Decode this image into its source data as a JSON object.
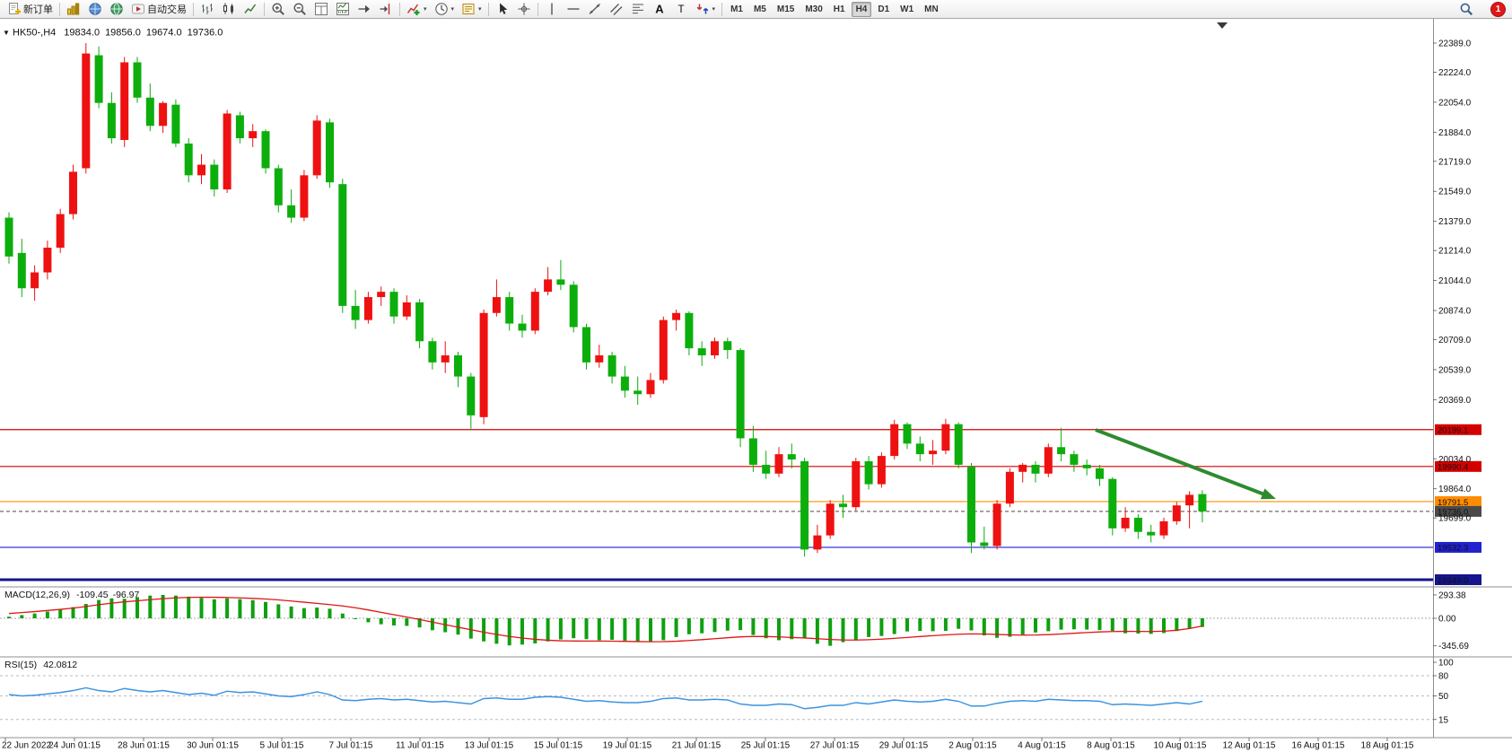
{
  "window": {
    "badge_count": "1"
  },
  "toolbar": {
    "groups": [
      {
        "items": [
          {
            "name": "new-order",
            "icon": "page-plus",
            "label": "新订单"
          }
        ]
      },
      {
        "items": [
          {
            "name": "market-watch",
            "icon": "market-watch"
          },
          {
            "name": "navigator",
            "icon": "navigator"
          },
          {
            "name": "terminal",
            "icon": "terminal"
          },
          {
            "name": "autotrading",
            "icon": "autotrading-play",
            "label": "自动交易"
          }
        ]
      },
      {
        "items": [
          {
            "name": "chart-bars",
            "icon": "chart-bars"
          },
          {
            "name": "chart-candles",
            "icon": "chart-candles"
          },
          {
            "name": "chart-line",
            "icon": "chart-line"
          }
        ]
      },
      {
        "items": [
          {
            "name": "zoom-in",
            "icon": "zoom-in"
          },
          {
            "name": "zoom-out",
            "icon": "zoom-out"
          },
          {
            "name": "tile-windows",
            "icon": "tile-windows"
          },
          {
            "name": "indicator-window",
            "icon": "indicator-window"
          },
          {
            "name": "auto-scroll",
            "icon": "auto-scroll"
          },
          {
            "name": "chart-shift",
            "icon": "chart-shift"
          }
        ]
      },
      {
        "items": [
          {
            "name": "insert-indicator",
            "icon": "add-indicator",
            "caret": true
          },
          {
            "name": "periods",
            "icon": "periods-clock",
            "caret": true
          },
          {
            "name": "templates",
            "icon": "templates",
            "caret": true
          }
        ]
      },
      {
        "items": [
          {
            "name": "cursor",
            "icon": "cursor-arrow"
          },
          {
            "name": "crosshair",
            "icon": "crosshair"
          }
        ]
      },
      {
        "items": [
          {
            "name": "vertical-line-tool",
            "icon": "vline"
          },
          {
            "name": "horizontal-line-tool",
            "icon": "hline"
          },
          {
            "name": "trendline-tool",
            "icon": "trendline"
          },
          {
            "name": "channel-tool",
            "icon": "channel"
          },
          {
            "name": "fibonacci-tool",
            "icon": "fibonacci"
          },
          {
            "name": "text-tool",
            "icon": "text-a"
          },
          {
            "name": "label-tool",
            "icon": "label-t"
          },
          {
            "name": "arrows-tool",
            "icon": "arrows-shapes",
            "caret": true
          }
        ]
      }
    ],
    "timeframes": [
      "M1",
      "M5",
      "M15",
      "M30",
      "H1",
      "H4",
      "D1",
      "W1",
      "MN"
    ],
    "active_timeframe": "H4"
  },
  "chart_data": {
    "type": "candlestick",
    "symbol": "HK50-",
    "timeframe": "H4",
    "header": {
      "symbol_tf": "HK50-,H4",
      "open": "19834.0",
      "high": "19856.0",
      "low": "19674.0",
      "close": "19736.0"
    },
    "price_gridlines": [
      "22389.0",
      "22224.0",
      "22054.0",
      "21884.0",
      "21719.0",
      "21549.0",
      "21379.0",
      "21214.0",
      "21044.0",
      "20874.0",
      "20709.0",
      "20539.0",
      "20369.0",
      "20034.0",
      "19864.0",
      "19699.0"
    ],
    "levels": [
      {
        "label": "20199.1",
        "value": 20199.1,
        "color": "#d40000",
        "kind": "resistance"
      },
      {
        "label": "19990.4",
        "value": 19990.4,
        "color": "#d40000",
        "kind": "resistance"
      },
      {
        "label": "19791.5",
        "value": 19791.5,
        "color": "#ff8c00",
        "kind": "support"
      },
      {
        "label": "19736.0",
        "value": 19736.0,
        "color": "#4a4a4a",
        "kind": "current-price"
      },
      {
        "label": "19532.3",
        "value": 19532.3,
        "color": "#2121cf",
        "kind": "support"
      },
      {
        "label": "19349.0",
        "value": 19349.0,
        "color": "#15158d",
        "kind": "support",
        "thick": true
      }
    ],
    "colors": {
      "bull": "#ee1111",
      "bear": "#0cae0c",
      "macd_histogram": "#0fa00f",
      "macd_signal": "#e01515",
      "rsi_line": "#3b93e0",
      "arrow": "#2e8b2e"
    },
    "candles": [
      [
        21400,
        21430,
        21140,
        21180
      ],
      [
        21200,
        21280,
        20950,
        21000
      ],
      [
        21000,
        21130,
        20930,
        21090
      ],
      [
        21090,
        21270,
        21050,
        21230
      ],
      [
        21230,
        21450,
        21200,
        21420
      ],
      [
        21420,
        21700,
        21390,
        21660
      ],
      [
        21680,
        22389,
        21650,
        22330
      ],
      [
        22320,
        22370,
        22020,
        22050
      ],
      [
        22050,
        22110,
        21820,
        21850
      ],
      [
        21840,
        22310,
        21800,
        22280
      ],
      [
        22280,
        22310,
        22050,
        22080
      ],
      [
        22080,
        22160,
        21890,
        21920
      ],
      [
        21920,
        22060,
        21880,
        22050
      ],
      [
        22040,
        22070,
        21800,
        21820
      ],
      [
        21820,
        21850,
        21600,
        21640
      ],
      [
        21640,
        21760,
        21590,
        21700
      ],
      [
        21700,
        21730,
        21520,
        21560
      ],
      [
        21560,
        22010,
        21540,
        21990
      ],
      [
        21980,
        22000,
        21820,
        21850
      ],
      [
        21850,
        21930,
        21800,
        21890
      ],
      [
        21890,
        21900,
        21650,
        21680
      ],
      [
        21680,
        21700,
        21430,
        21470
      ],
      [
        21470,
        21560,
        21370,
        21400
      ],
      [
        21400,
        21670,
        21380,
        21640
      ],
      [
        21640,
        21980,
        21620,
        21950
      ],
      [
        21940,
        21960,
        21570,
        21600
      ],
      [
        21590,
        21620,
        20860,
        20900
      ],
      [
        20900,
        20990,
        20770,
        20820
      ],
      [
        20820,
        20980,
        20800,
        20950
      ],
      [
        20950,
        21010,
        20900,
        20980
      ],
      [
        20980,
        21000,
        20800,
        20840
      ],
      [
        20840,
        20960,
        20820,
        20920
      ],
      [
        20920,
        20940,
        20660,
        20700
      ],
      [
        20700,
        20720,
        20540,
        20580
      ],
      [
        20580,
        20700,
        20520,
        20620
      ],
      [
        20620,
        20640,
        20440,
        20500
      ],
      [
        20500,
        20520,
        20199,
        20280
      ],
      [
        20270,
        20880,
        20230,
        20860
      ],
      [
        20860,
        21050,
        20840,
        20950
      ],
      [
        20950,
        20980,
        20760,
        20800
      ],
      [
        20800,
        20850,
        20720,
        20760
      ],
      [
        20760,
        21000,
        20740,
        20980
      ],
      [
        20980,
        21120,
        20960,
        21050
      ],
      [
        21050,
        21160,
        20990,
        21020
      ],
      [
        21020,
        21040,
        20750,
        20780
      ],
      [
        20780,
        20800,
        20540,
        20580
      ],
      [
        20580,
        20680,
        20550,
        20620
      ],
      [
        20620,
        20640,
        20460,
        20500
      ],
      [
        20500,
        20560,
        20380,
        20420
      ],
      [
        20420,
        20500,
        20340,
        20400
      ],
      [
        20400,
        20520,
        20380,
        20480
      ],
      [
        20480,
        20840,
        20460,
        20820
      ],
      [
        20820,
        20880,
        20760,
        20860
      ],
      [
        20860,
        20870,
        20620,
        20660
      ],
      [
        20660,
        20700,
        20560,
        20620
      ],
      [
        20620,
        20720,
        20600,
        20700
      ],
      [
        20700,
        20720,
        20600,
        20650
      ],
      [
        20650,
        20660,
        20100,
        20150
      ],
      [
        20150,
        20220,
        19960,
        20000
      ],
      [
        20000,
        20080,
        19920,
        19950
      ],
      [
        19950,
        20100,
        19930,
        20060
      ],
      [
        20060,
        20120,
        19980,
        20030
      ],
      [
        20020,
        20040,
        19480,
        19520
      ],
      [
        19520,
        19660,
        19500,
        19600
      ],
      [
        19600,
        19800,
        19580,
        19780
      ],
      [
        19780,
        19830,
        19700,
        19760
      ],
      [
        19760,
        20040,
        19740,
        20020
      ],
      [
        20020,
        20050,
        19860,
        19890
      ],
      [
        19890,
        20070,
        19870,
        20050
      ],
      [
        20050,
        20255,
        20030,
        20230
      ],
      [
        20230,
        20240,
        20090,
        20120
      ],
      [
        20120,
        20160,
        20020,
        20060
      ],
      [
        20060,
        20140,
        20000,
        20080
      ],
      [
        20080,
        20260,
        20060,
        20230
      ],
      [
        20230,
        20240,
        19980,
        20000
      ],
      [
        19990,
        20010,
        19500,
        19560
      ],
      [
        19560,
        19650,
        19520,
        19540
      ],
      [
        19540,
        19800,
        19520,
        19780
      ],
      [
        19780,
        19980,
        19760,
        19960
      ],
      [
        19960,
        20010,
        19900,
        20000
      ],
      [
        20000,
        20020,
        19900,
        19950
      ],
      [
        19950,
        20120,
        19930,
        20100
      ],
      [
        20100,
        20210,
        20020,
        20060
      ],
      [
        20060,
        20080,
        19960,
        20000
      ],
      [
        20000,
        20030,
        19940,
        19980
      ],
      [
        19980,
        20000,
        19880,
        19920
      ],
      [
        19920,
        19930,
        19600,
        19640
      ],
      [
        19640,
        19760,
        19620,
        19700
      ],
      [
        19700,
        19720,
        19580,
        19620
      ],
      [
        19620,
        19660,
        19560,
        19600
      ],
      [
        19600,
        19700,
        19580,
        19680
      ],
      [
        19680,
        19790,
        19660,
        19770
      ],
      [
        19770,
        19850,
        19640,
        19830
      ],
      [
        19834,
        19856,
        19674,
        19736
      ]
    ],
    "macd": {
      "title": "MACD(12,26,9)",
      "main_value": "-109.45",
      "signal_value": "-96.97",
      "scale_labels": [
        "293.38",
        "0.00",
        "-345.69"
      ],
      "histogram": [
        20,
        40,
        60,
        85,
        110,
        140,
        180,
        230,
        250,
        245,
        265,
        285,
        293,
        285,
        272,
        255,
        238,
        250,
        240,
        228,
        205,
        175,
        148,
        128,
        135,
        120,
        60,
        -10,
        -50,
        -75,
        -90,
        -95,
        -115,
        -150,
        -175,
        -205,
        -255,
        -290,
        -320,
        -340,
        -330,
        -315,
        -290,
        -265,
        -250,
        -262,
        -275,
        -270,
        -280,
        -290,
        -295,
        -275,
        -235,
        -200,
        -188,
        -172,
        -155,
        -148,
        -210,
        -250,
        -275,
        -262,
        -250,
        -320,
        -345,
        -300,
        -272,
        -235,
        -222,
        -198,
        -165,
        -158,
        -162,
        -158,
        -132,
        -152,
        -215,
        -245,
        -232,
        -205,
        -178,
        -162,
        -142,
        -138,
        -142,
        -148,
        -158,
        -188,
        -192,
        -196,
        -185,
        -160,
        -132,
        -109.45
      ],
      "signal": [
        60,
        72,
        84,
        98,
        112,
        128,
        148,
        170,
        190,
        206,
        220,
        234,
        246,
        256,
        262,
        265,
        264,
        261,
        256,
        250,
        242,
        231,
        217,
        202,
        187,
        172,
        155,
        132,
        105,
        75,
        45,
        15,
        -16,
        -48,
        -80,
        -112,
        -144,
        -175,
        -203,
        -228,
        -248,
        -264,
        -275,
        -282,
        -285,
        -286,
        -286,
        -287,
        -289,
        -292,
        -294,
        -293,
        -288,
        -279,
        -268,
        -256,
        -244,
        -233,
        -228,
        -229,
        -234,
        -241,
        -247,
        -256,
        -266,
        -272,
        -273,
        -269,
        -262,
        -252,
        -241,
        -229,
        -218,
        -208,
        -200,
        -196,
        -197,
        -202,
        -208,
        -211,
        -210,
        -205,
        -197,
        -188,
        -179,
        -171,
        -166,
        -164,
        -165,
        -166,
        -162,
        -150,
        -128,
        -96.97
      ]
    },
    "rsi": {
      "title": "RSI(15)",
      "value": "42.0812",
      "scale_labels": [
        "100",
        "80",
        "50",
        "15"
      ],
      "levels": [
        80,
        50,
        15
      ],
      "values": [
        52,
        50,
        51,
        53,
        55,
        58,
        62,
        58,
        56,
        61,
        58,
        56,
        58,
        55,
        52,
        54,
        51,
        57,
        55,
        56,
        53,
        50,
        49,
        52,
        56,
        52,
        44,
        43,
        45,
        46,
        44,
        45,
        43,
        41,
        42,
        40,
        38,
        46,
        47,
        45,
        45,
        48,
        49,
        48,
        45,
        42,
        43,
        41,
        40,
        40,
        42,
        46,
        47,
        44,
        44,
        45,
        44,
        38,
        36,
        36,
        38,
        37,
        31,
        33,
        36,
        36,
        40,
        38,
        41,
        44,
        42,
        41,
        42,
        45,
        42,
        35,
        35,
        39,
        42,
        43,
        42,
        45,
        44,
        43,
        43,
        42,
        37,
        38,
        37,
        36,
        38,
        40,
        38,
        42.08
      ]
    },
    "time_labels": [
      "22 Jun 2022",
      "24 Jun 01:15",
      "28 Jun 01:15",
      "30 Jun 01:15",
      "5 Jul 01:15",
      "7 Jul 01:15",
      "11 Jul 01:15",
      "13 Jul 01:15",
      "15 Jul 01:15",
      "19 Jul 01:15",
      "21 Jul 01:15",
      "25 Jul 01:15",
      "27 Jul 01:15",
      "29 Jul 01:15",
      "2 Aug 01:15",
      "4 Aug 01:15",
      "8 Aug 01:15",
      "10 Aug 01:15",
      "12 Aug 01:15",
      "16 Aug 01:15",
      "18 Aug 01:15"
    ],
    "arrow_annotation": {
      "from_price": 20215,
      "to_price": 19810,
      "note": "downtrend-arrow"
    }
  }
}
